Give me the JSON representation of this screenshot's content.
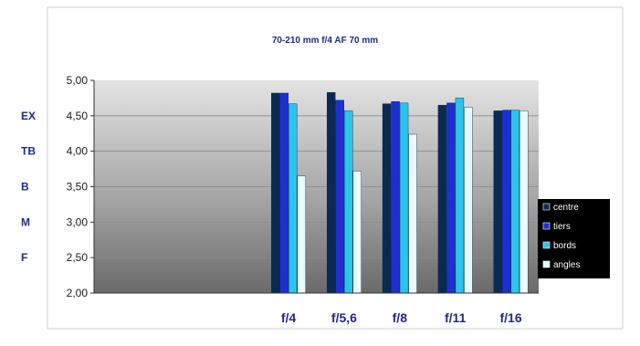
{
  "chart_data": {
    "type": "bar",
    "title": "70-210 mm f/4 AF  70 mm",
    "categories": [
      "",
      "",
      "",
      "f/4",
      "f/5,6",
      "f/8",
      "f/11",
      "f/16"
    ],
    "series": [
      {
        "name": "centre",
        "values": [
          null,
          null,
          null,
          4.82,
          4.83,
          4.67,
          4.65,
          4.57
        ]
      },
      {
        "name": "tiers",
        "values": [
          null,
          null,
          null,
          4.82,
          4.72,
          4.7,
          4.68,
          4.58
        ]
      },
      {
        "name": "bords",
        "values": [
          null,
          null,
          null,
          4.67,
          4.57,
          4.68,
          4.75,
          4.58
        ]
      },
      {
        "name": "angles",
        "values": [
          null,
          null,
          null,
          3.65,
          3.72,
          4.24,
          4.62,
          4.57
        ]
      }
    ],
    "colors": {
      "centre": "#0a2a55",
      "tiers": "#1c2fd6",
      "bords": "#2bc5ea",
      "angles": "#e8fbff",
      "title": "#1d2a8f",
      "labels": "#1d2a8f",
      "legend_bg": "#000000",
      "legend_text": "#ffffff"
    },
    "ylim": [
      2.0,
      5.0
    ],
    "yticks": [
      "5,00",
      "4,50",
      "4,00",
      "3,50",
      "3,00",
      "2,50",
      "2,00"
    ],
    "ytick_values": [
      5.0,
      4.5,
      4.0,
      3.5,
      3.0,
      2.5,
      2.0
    ],
    "grid": true,
    "legend_position": "right",
    "quality_labels": [
      {
        "label": "EX",
        "value": 4.5
      },
      {
        "label": "TB",
        "value": 4.0
      },
      {
        "label": "B",
        "value": 3.5
      },
      {
        "label": "M",
        "value": 3.0
      },
      {
        "label": "F",
        "value": 2.5
      }
    ]
  }
}
